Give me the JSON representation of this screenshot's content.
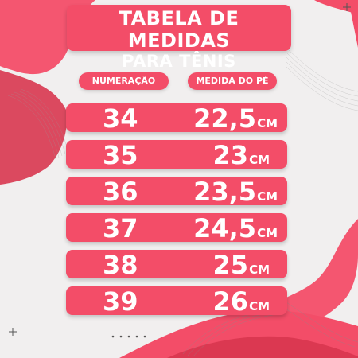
{
  "title": {
    "line1": "TABELA DE MEDIDAS",
    "line2": "PARA TÊNIS"
  },
  "headers": {
    "size": "NUMERAÇÃO",
    "measure": "MEDIDA DO PÉ"
  },
  "rows": [
    {
      "size": "34",
      "measure": "22,5",
      "unit": "CM"
    },
    {
      "size": "35",
      "measure": "23",
      "unit": "CM"
    },
    {
      "size": "36",
      "measure": "23,5",
      "unit": "CM"
    },
    {
      "size": "37",
      "measure": "24,5",
      "unit": "CM"
    },
    {
      "size": "38",
      "measure": "25",
      "unit": "CM"
    },
    {
      "size": "39",
      "measure": "26",
      "unit": "CM"
    }
  ],
  "colors": {
    "accent": "#f34d68",
    "background": "#f1efef",
    "text": "#ffffff"
  }
}
